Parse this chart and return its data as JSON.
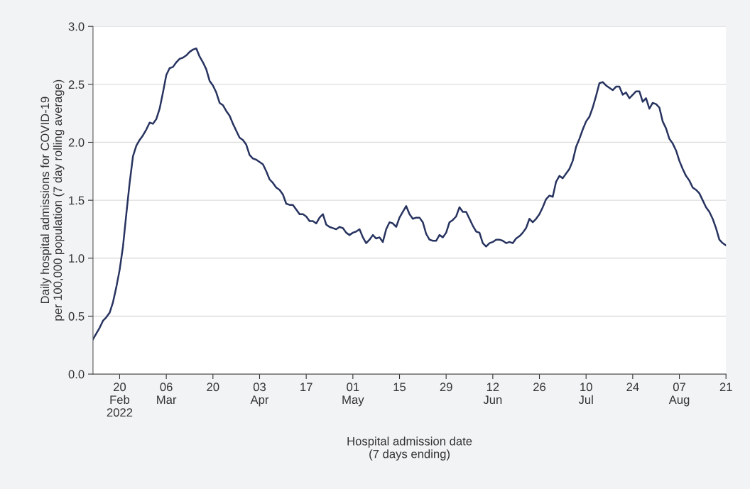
{
  "chart_data": {
    "type": "line",
    "xlabel": "Hospital admission date\n(7 days ending)",
    "ylabel": "Daily hospital admissions for COVID-19\nper 100,000 population (7 day rolling average)",
    "x": [
      "2022-02-12",
      "2022-02-13",
      "2022-02-14",
      "2022-02-15",
      "2022-02-16",
      "2022-02-17",
      "2022-02-18",
      "2022-02-19",
      "2022-02-20",
      "2022-02-21",
      "2022-02-22",
      "2022-02-23",
      "2022-02-24",
      "2022-02-25",
      "2022-02-26",
      "2022-02-27",
      "2022-02-28",
      "2022-03-01",
      "2022-03-02",
      "2022-03-03",
      "2022-03-04",
      "2022-03-05",
      "2022-03-06",
      "2022-03-07",
      "2022-03-08",
      "2022-03-09",
      "2022-03-10",
      "2022-03-11",
      "2022-03-12",
      "2022-03-13",
      "2022-03-14",
      "2022-03-15",
      "2022-03-16",
      "2022-03-17",
      "2022-03-18",
      "2022-03-19",
      "2022-03-20",
      "2022-03-21",
      "2022-03-22",
      "2022-03-23",
      "2022-03-24",
      "2022-03-25",
      "2022-03-26",
      "2022-03-27",
      "2022-03-28",
      "2022-03-29",
      "2022-03-30",
      "2022-03-31",
      "2022-04-01",
      "2022-04-02",
      "2022-04-03",
      "2022-04-04",
      "2022-04-05",
      "2022-04-06",
      "2022-04-07",
      "2022-04-08",
      "2022-04-09",
      "2022-04-10",
      "2022-04-11",
      "2022-04-12",
      "2022-04-13",
      "2022-04-14",
      "2022-04-15",
      "2022-04-16",
      "2022-04-17",
      "2022-04-18",
      "2022-04-19",
      "2022-04-20",
      "2022-04-21",
      "2022-04-22",
      "2022-04-23",
      "2022-04-24",
      "2022-04-25",
      "2022-04-26",
      "2022-04-27",
      "2022-04-28",
      "2022-04-29",
      "2022-04-30",
      "2022-05-01",
      "2022-05-02",
      "2022-05-03",
      "2022-05-04",
      "2022-05-05",
      "2022-05-06",
      "2022-05-07",
      "2022-05-08",
      "2022-05-09",
      "2022-05-10",
      "2022-05-11",
      "2022-05-12",
      "2022-05-13",
      "2022-05-14",
      "2022-05-15",
      "2022-05-16",
      "2022-05-17",
      "2022-05-18",
      "2022-05-19",
      "2022-05-20",
      "2022-05-21",
      "2022-05-22",
      "2022-05-23",
      "2022-05-24",
      "2022-05-25",
      "2022-05-26",
      "2022-05-27",
      "2022-05-28",
      "2022-05-29",
      "2022-05-30",
      "2022-05-31",
      "2022-06-01",
      "2022-06-02",
      "2022-06-03",
      "2022-06-04",
      "2022-06-05",
      "2022-06-06",
      "2022-06-07",
      "2022-06-08",
      "2022-06-09",
      "2022-06-10",
      "2022-06-11",
      "2022-06-12",
      "2022-06-13",
      "2022-06-14",
      "2022-06-15",
      "2022-06-16",
      "2022-06-17",
      "2022-06-18",
      "2022-06-19",
      "2022-06-20",
      "2022-06-21",
      "2022-06-22",
      "2022-06-23",
      "2022-06-24",
      "2022-06-25",
      "2022-06-26",
      "2022-06-27",
      "2022-06-28",
      "2022-06-29",
      "2022-06-30",
      "2022-07-01",
      "2022-07-02",
      "2022-07-03",
      "2022-07-04",
      "2022-07-05",
      "2022-07-06",
      "2022-07-07",
      "2022-07-08",
      "2022-07-09",
      "2022-07-10",
      "2022-07-11",
      "2022-07-12",
      "2022-07-13",
      "2022-07-14",
      "2022-07-15",
      "2022-07-16",
      "2022-07-17",
      "2022-07-18",
      "2022-07-19",
      "2022-07-20",
      "2022-07-21",
      "2022-07-22",
      "2022-07-23",
      "2022-07-24",
      "2022-07-25",
      "2022-07-26",
      "2022-07-27",
      "2022-07-28",
      "2022-07-29",
      "2022-07-30",
      "2022-07-31",
      "2022-08-01",
      "2022-08-02",
      "2022-08-03",
      "2022-08-04",
      "2022-08-05",
      "2022-08-06",
      "2022-08-07",
      "2022-08-08",
      "2022-08-09",
      "2022-08-10",
      "2022-08-11",
      "2022-08-12",
      "2022-08-13",
      "2022-08-14",
      "2022-08-15",
      "2022-08-16",
      "2022-08-17",
      "2022-08-18",
      "2022-08-19",
      "2022-08-20",
      "2022-08-21"
    ],
    "series": [
      {
        "color": "#283460",
        "values": [
          0.3,
          0.35,
          0.4,
          0.46,
          0.49,
          0.53,
          0.62,
          0.75,
          0.9,
          1.1,
          1.38,
          1.65,
          1.88,
          1.97,
          2.02,
          2.06,
          2.11,
          2.17,
          2.16,
          2.2,
          2.29,
          2.43,
          2.58,
          2.64,
          2.65,
          2.69,
          2.72,
          2.73,
          2.75,
          2.78,
          2.8,
          2.81,
          2.74,
          2.69,
          2.63,
          2.53,
          2.49,
          2.43,
          2.34,
          2.32,
          2.27,
          2.23,
          2.16,
          2.1,
          2.04,
          2.02,
          1.98,
          1.89,
          1.86,
          1.85,
          1.83,
          1.81,
          1.75,
          1.68,
          1.65,
          1.61,
          1.59,
          1.55,
          1.47,
          1.46,
          1.46,
          1.42,
          1.38,
          1.38,
          1.36,
          1.32,
          1.32,
          1.3,
          1.35,
          1.38,
          1.29,
          1.27,
          1.26,
          1.25,
          1.27,
          1.26,
          1.22,
          1.2,
          1.22,
          1.23,
          1.25,
          1.18,
          1.13,
          1.16,
          1.2,
          1.17,
          1.18,
          1.14,
          1.25,
          1.31,
          1.3,
          1.27,
          1.35,
          1.4,
          1.45,
          1.38,
          1.34,
          1.35,
          1.35,
          1.31,
          1.21,
          1.16,
          1.15,
          1.15,
          1.2,
          1.18,
          1.22,
          1.31,
          1.33,
          1.36,
          1.44,
          1.4,
          1.4,
          1.34,
          1.28,
          1.23,
          1.22,
          1.13,
          1.1,
          1.13,
          1.14,
          1.16,
          1.16,
          1.15,
          1.13,
          1.14,
          1.13,
          1.17,
          1.19,
          1.22,
          1.26,
          1.34,
          1.31,
          1.34,
          1.38,
          1.44,
          1.51,
          1.54,
          1.53,
          1.66,
          1.71,
          1.69,
          1.73,
          1.77,
          1.84,
          1.96,
          2.03,
          2.11,
          2.18,
          2.22,
          2.3,
          2.4,
          2.51,
          2.52,
          2.49,
          2.47,
          2.45,
          2.48,
          2.48,
          2.41,
          2.43,
          2.38,
          2.41,
          2.44,
          2.44,
          2.35,
          2.38,
          2.29,
          2.34,
          2.33,
          2.3,
          2.18,
          2.12,
          2.03,
          1.99,
          1.93,
          1.84,
          1.77,
          1.71,
          1.67,
          1.61,
          1.59,
          1.56,
          1.5,
          1.44,
          1.4,
          1.34,
          1.26,
          1.16,
          1.13,
          1.11
        ]
      }
    ],
    "xlim": [
      "2022-02-12",
      "2022-08-21"
    ],
    "xticks": [
      {
        "value": "2022-02-20",
        "label": "20\nFeb\n2022"
      },
      {
        "value": "2022-03-06",
        "label": "06\nMar"
      },
      {
        "value": "2022-03-20",
        "label": "20"
      },
      {
        "value": "2022-04-03",
        "label": "03\nApr"
      },
      {
        "value": "2022-04-17",
        "label": "17"
      },
      {
        "value": "2022-05-01",
        "label": "01\nMay"
      },
      {
        "value": "2022-05-15",
        "label": "15"
      },
      {
        "value": "2022-05-29",
        "label": "29"
      },
      {
        "value": "2022-06-12",
        "label": "12\nJun"
      },
      {
        "value": "2022-06-26",
        "label": "26"
      },
      {
        "value": "2022-07-10",
        "label": "10\nJul"
      },
      {
        "value": "2022-07-24",
        "label": "24"
      },
      {
        "value": "2022-08-07",
        "label": "07\nAug"
      },
      {
        "value": "2022-08-21",
        "label": "21"
      }
    ],
    "ylim": [
      0,
      3.0
    ],
    "yticks": [
      {
        "value": 0,
        "label": "0.0"
      },
      {
        "value": 0.5,
        "label": "0.5"
      },
      {
        "value": 1.0,
        "label": "1.0"
      },
      {
        "value": 1.5,
        "label": "1.5"
      },
      {
        "value": 2.0,
        "label": "2.0"
      },
      {
        "value": 2.5,
        "label": "2.5"
      },
      {
        "value": 3.0,
        "label": "3.0"
      }
    ],
    "grid": "y",
    "legend": false,
    "marker": "none",
    "line_style": "solid"
  }
}
